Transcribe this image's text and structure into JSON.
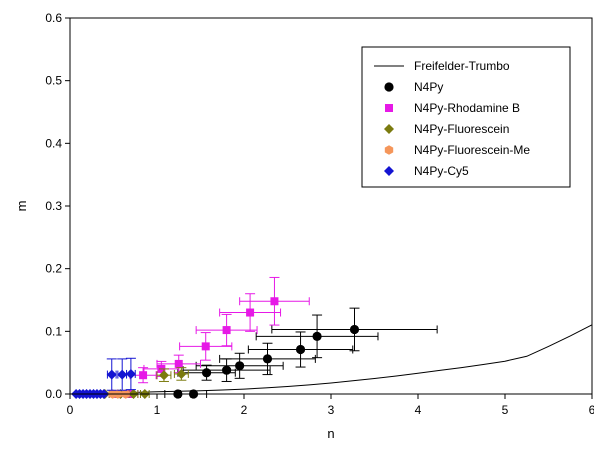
{
  "chart_data": {
    "type": "scatter",
    "xlabel": "n",
    "ylabel": "m",
    "xlim": [
      0,
      6
    ],
    "ylim": [
      0,
      0.6
    ],
    "x_ticks": [
      0,
      1,
      2,
      3,
      4,
      5,
      6
    ],
    "y_ticks": [
      0.0,
      0.1,
      0.2,
      0.3,
      0.4,
      0.5,
      0.6
    ],
    "x_tick_labels": [
      "0",
      "1",
      "2",
      "3",
      "4",
      "5",
      "6"
    ],
    "y_tick_labels": [
      "0.0",
      "0.1",
      "0.2",
      "0.3",
      "0.4",
      "0.5",
      "0.6"
    ],
    "grid": false,
    "legend_position": "top-right",
    "series": [
      {
        "name": "Freifelder-Trumbo",
        "kind": "line",
        "color": "#000000",
        "x": [
          0,
          0.25,
          0.5,
          0.75,
          1,
          1.25,
          1.5,
          1.75,
          2,
          2.25,
          2.5,
          2.75,
          3,
          3.25,
          3.5,
          3.75,
          4,
          4.25,
          4.5,
          4.75,
          5,
          5.25,
          5.5,
          5.75,
          6
        ],
        "y": [
          0,
          0.0009,
          0.0017,
          0.0026,
          0.0035,
          0.0044,
          0.0053,
          0.0064,
          0.0078,
          0.0097,
          0.0119,
          0.0146,
          0.0176,
          0.021,
          0.0248,
          0.0288,
          0.0331,
          0.0376,
          0.0422,
          0.0471,
          0.0523,
          0.0601,
          0.0759,
          0.0927,
          0.1105
        ]
      },
      {
        "name": "N4Py",
        "kind": "points",
        "marker": "circle",
        "color": "#000000",
        "points": [
          {
            "x": 1.24,
            "y": 0.0,
            "xerr": 0.15,
            "yerr": 0
          },
          {
            "x": 1.42,
            "y": 0.0,
            "xerr": 0.15,
            "yerr": 0
          },
          {
            "x": 1.57,
            "y": 0.034,
            "xerr": 0.33,
            "yerr": 0.012
          },
          {
            "x": 1.8,
            "y": 0.038,
            "xerr": 0.5,
            "yerr": 0.018
          },
          {
            "x": 1.95,
            "y": 0.045,
            "xerr": 0.5,
            "yerr": 0.02
          },
          {
            "x": 2.27,
            "y": 0.056,
            "xerr": 0.55,
            "yerr": 0.025
          },
          {
            "x": 2.65,
            "y": 0.071,
            "xerr": 0.6,
            "yerr": 0.028
          },
          {
            "x": 2.84,
            "y": 0.092,
            "xerr": 0.7,
            "yerr": 0.034
          },
          {
            "x": 3.27,
            "y": 0.103,
            "xerr": 0.95,
            "yerr": 0.034
          }
        ]
      },
      {
        "name": "N4Py-Rhodamine B",
        "kind": "points",
        "marker": "square",
        "color": "#e619e6",
        "points": [
          {
            "x": 0.55,
            "y": 0.0,
            "xerr": 0.1,
            "yerr": 0
          },
          {
            "x": 0.68,
            "y": 0.0,
            "xerr": 0.1,
            "yerr": 0
          },
          {
            "x": 0.84,
            "y": 0.03,
            "xerr": 0.15,
            "yerr": 0.012
          },
          {
            "x": 1.05,
            "y": 0.04,
            "xerr": 0.2,
            "yerr": 0.012
          },
          {
            "x": 1.25,
            "y": 0.048,
            "xerr": 0.25,
            "yerr": 0.014
          },
          {
            "x": 1.56,
            "y": 0.076,
            "xerr": 0.3,
            "yerr": 0.022
          },
          {
            "x": 1.8,
            "y": 0.102,
            "xerr": 0.35,
            "yerr": 0.025
          },
          {
            "x": 2.07,
            "y": 0.13,
            "xerr": 0.35,
            "yerr": 0.03
          },
          {
            "x": 2.35,
            "y": 0.148,
            "xerr": 0.4,
            "yerr": 0.038
          }
        ]
      },
      {
        "name": "N4Py-Fluorescein",
        "kind": "points",
        "marker": "diamond",
        "color": "#7b7b0f",
        "points": [
          {
            "x": 0.4,
            "y": 0.0,
            "xerr": 0.05,
            "yerr": 0
          },
          {
            "x": 0.58,
            "y": 0.0,
            "xerr": 0.05,
            "yerr": 0
          },
          {
            "x": 0.73,
            "y": 0.0,
            "xerr": 0.05,
            "yerr": 0
          },
          {
            "x": 0.86,
            "y": 0.0,
            "xerr": 0.05,
            "yerr": 0
          },
          {
            "x": 1.08,
            "y": 0.03,
            "xerr": 0.08,
            "yerr": 0.01
          },
          {
            "x": 1.28,
            "y": 0.032,
            "xerr": 0.08,
            "yerr": 0.01
          }
        ]
      },
      {
        "name": "N4Py-Fluorescein-Me",
        "kind": "points",
        "marker": "hexagon",
        "color": "#f5965a",
        "points": [
          {
            "x": 0.49,
            "y": 0.0,
            "xerr": 0,
            "yerr": 0
          },
          {
            "x": 0.55,
            "y": 0.0,
            "xerr": 0,
            "yerr": 0
          },
          {
            "x": 0.64,
            "y": 0.0,
            "xerr": 0,
            "yerr": 0
          }
        ]
      },
      {
        "name": "N4Py-Cy5",
        "kind": "points",
        "marker": "diamond",
        "color": "#1414d2",
        "points": [
          {
            "x": 0.07,
            "y": 0.0,
            "xerr": 0,
            "yerr": 0
          },
          {
            "x": 0.11,
            "y": 0.0,
            "xerr": 0,
            "yerr": 0
          },
          {
            "x": 0.15,
            "y": 0.0,
            "xerr": 0,
            "yerr": 0
          },
          {
            "x": 0.19,
            "y": 0.0,
            "xerr": 0,
            "yerr": 0
          },
          {
            "x": 0.23,
            "y": 0.0,
            "xerr": 0,
            "yerr": 0
          },
          {
            "x": 0.27,
            "y": 0.0,
            "xerr": 0,
            "yerr": 0
          },
          {
            "x": 0.31,
            "y": 0.0,
            "xerr": 0,
            "yerr": 0
          },
          {
            "x": 0.35,
            "y": 0.0,
            "xerr": 0,
            "yerr": 0
          },
          {
            "x": 0.39,
            "y": 0.0,
            "xerr": 0,
            "yerr": 0
          },
          {
            "x": 0.48,
            "y": 0.031,
            "xerr": 0.05,
            "yerr": 0.025
          },
          {
            "x": 0.6,
            "y": 0.031,
            "xerr": 0.05,
            "yerr": 0.025
          },
          {
            "x": 0.7,
            "y": 0.032,
            "xerr": 0.05,
            "yerr": 0.025
          }
        ]
      }
    ]
  }
}
